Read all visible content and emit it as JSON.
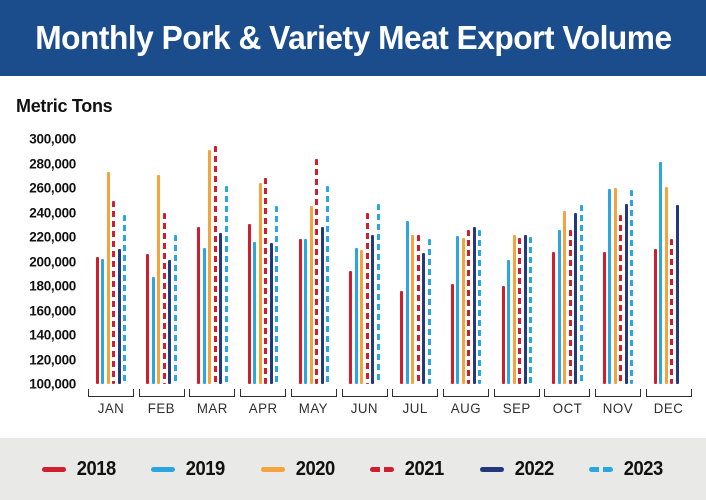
{
  "header": {
    "title": "Monthly Pork & Variety Meat Export Volume",
    "banner_color": "#1b4d8d"
  },
  "chart_data": {
    "type": "bar",
    "title": "Monthly Pork & Variety Meat Export Volume",
    "ylabel": "Metric Tons",
    "xlabel": "",
    "ylim": [
      100000,
      300000
    ],
    "ytick_step": 20000,
    "grid": false,
    "legend_position": "bottom",
    "categories": [
      "JAN",
      "FEB",
      "MAR",
      "APR",
      "MAY",
      "JUN",
      "JUL",
      "AUG",
      "SEP",
      "OCT",
      "NOV",
      "DEC"
    ],
    "series": [
      {
        "name": "2018",
        "style": "solid",
        "color": "#cf1f2e",
        "values": [
          204000,
          206000,
          228000,
          231000,
          218000,
          192000,
          176000,
          182000,
          180000,
          208000,
          208000,
          210000
        ]
      },
      {
        "name": "2019",
        "style": "solid",
        "color": "#2aa7e0",
        "values": [
          202000,
          187000,
          211000,
          216000,
          218000,
          211000,
          233000,
          221000,
          201000,
          226000,
          259000,
          281000
        ]
      },
      {
        "name": "2020",
        "style": "solid",
        "color": "#f5a33c",
        "values": [
          273000,
          271000,
          291000,
          264000,
          245000,
          209000,
          222000,
          219000,
          222000,
          241000,
          260000,
          261000
        ]
      },
      {
        "name": "2021",
        "style": "dashed",
        "color": "#cf1f2e",
        "values": [
          249000,
          240000,
          294000,
          268000,
          284000,
          240000,
          222000,
          226000,
          219000,
          226000,
          238000,
          218000
        ]
      },
      {
        "name": "2022",
        "style": "solid",
        "color": "#24397b",
        "values": [
          210000,
          201000,
          223000,
          215000,
          228000,
          222000,
          207000,
          228000,
          222000,
          240000,
          247000,
          246000
        ]
      },
      {
        "name": "2023",
        "style": "dashed",
        "color": "#2aa7e0",
        "values": [
          238000,
          222000,
          262000,
          245000,
          262000,
          247000,
          218000,
          226000,
          220000,
          246000,
          258000,
          null
        ]
      }
    ]
  },
  "colors": {
    "legend_band": "#e9e9e7",
    "axis_text": "#111111",
    "month_text": "#2f2f2f"
  }
}
